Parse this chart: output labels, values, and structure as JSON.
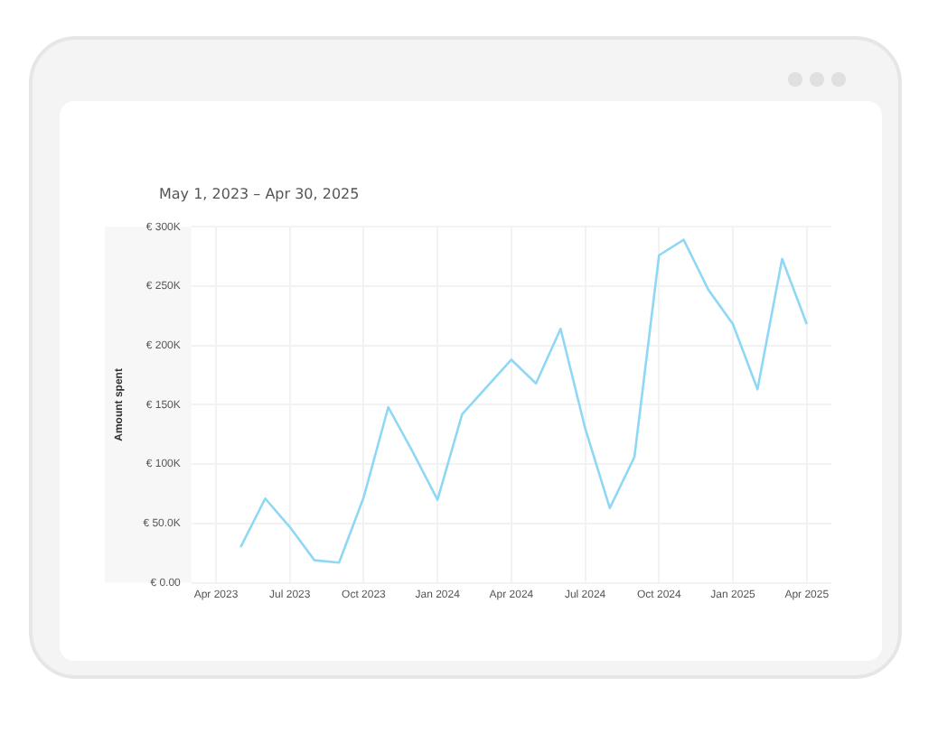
{
  "chart_data": {
    "type": "line",
    "title": "May 1, 2023 – Apr 30, 2025",
    "ylabel": "Amount spent",
    "x": [
      "2023-05",
      "2023-06",
      "2023-07",
      "2023-08",
      "2023-09",
      "2023-10",
      "2023-11",
      "2023-12",
      "2024-01",
      "2024-02",
      "2024-03",
      "2024-04",
      "2024-05",
      "2024-06",
      "2024-07",
      "2024-08",
      "2024-09",
      "2024-10",
      "2024-11",
      "2024-12",
      "2025-01",
      "2025-02",
      "2025-03",
      "2025-04"
    ],
    "series": [
      {
        "color": "#8fd8f5",
        "values": [
          30000,
          71000,
          47000,
          19000,
          17000,
          72000,
          148000,
          110000,
          70000,
          142000,
          165000,
          188000,
          168000,
          214000,
          130000,
          63000,
          106000,
          276000,
          289000,
          247000,
          218000,
          163000,
          273000,
          218000
        ]
      }
    ],
    "xlim": [
      "2023-03",
      "2025-05"
    ],
    "xticks": [
      {
        "value": "2023-04",
        "label": "Apr 2023"
      },
      {
        "value": "2023-07",
        "label": "Jul 2023"
      },
      {
        "value": "2023-10",
        "label": "Oct 2023"
      },
      {
        "value": "2024-01",
        "label": "Jan 2024"
      },
      {
        "value": "2024-04",
        "label": "Apr 2024"
      },
      {
        "value": "2024-07",
        "label": "Jul 2024"
      },
      {
        "value": "2024-10",
        "label": "Oct 2024"
      },
      {
        "value": "2025-01",
        "label": "Jan 2025"
      },
      {
        "value": "2025-04",
        "label": "Apr 2025"
      }
    ],
    "ylim": [
      0,
      300000
    ],
    "yticks": [
      {
        "value": 0,
        "label": "€ 0.00"
      },
      {
        "value": 50000,
        "label": "€ 50.0K"
      },
      {
        "value": 100000,
        "label": "€ 100K"
      },
      {
        "value": 150000,
        "label": "€ 150K"
      },
      {
        "value": 200000,
        "label": "€ 200K"
      },
      {
        "value": 250000,
        "label": "€ 250K"
      },
      {
        "value": 300000,
        "label": "€ 300K"
      }
    ],
    "grid": true,
    "legend": false,
    "marker": "none",
    "line_style": "solid"
  }
}
